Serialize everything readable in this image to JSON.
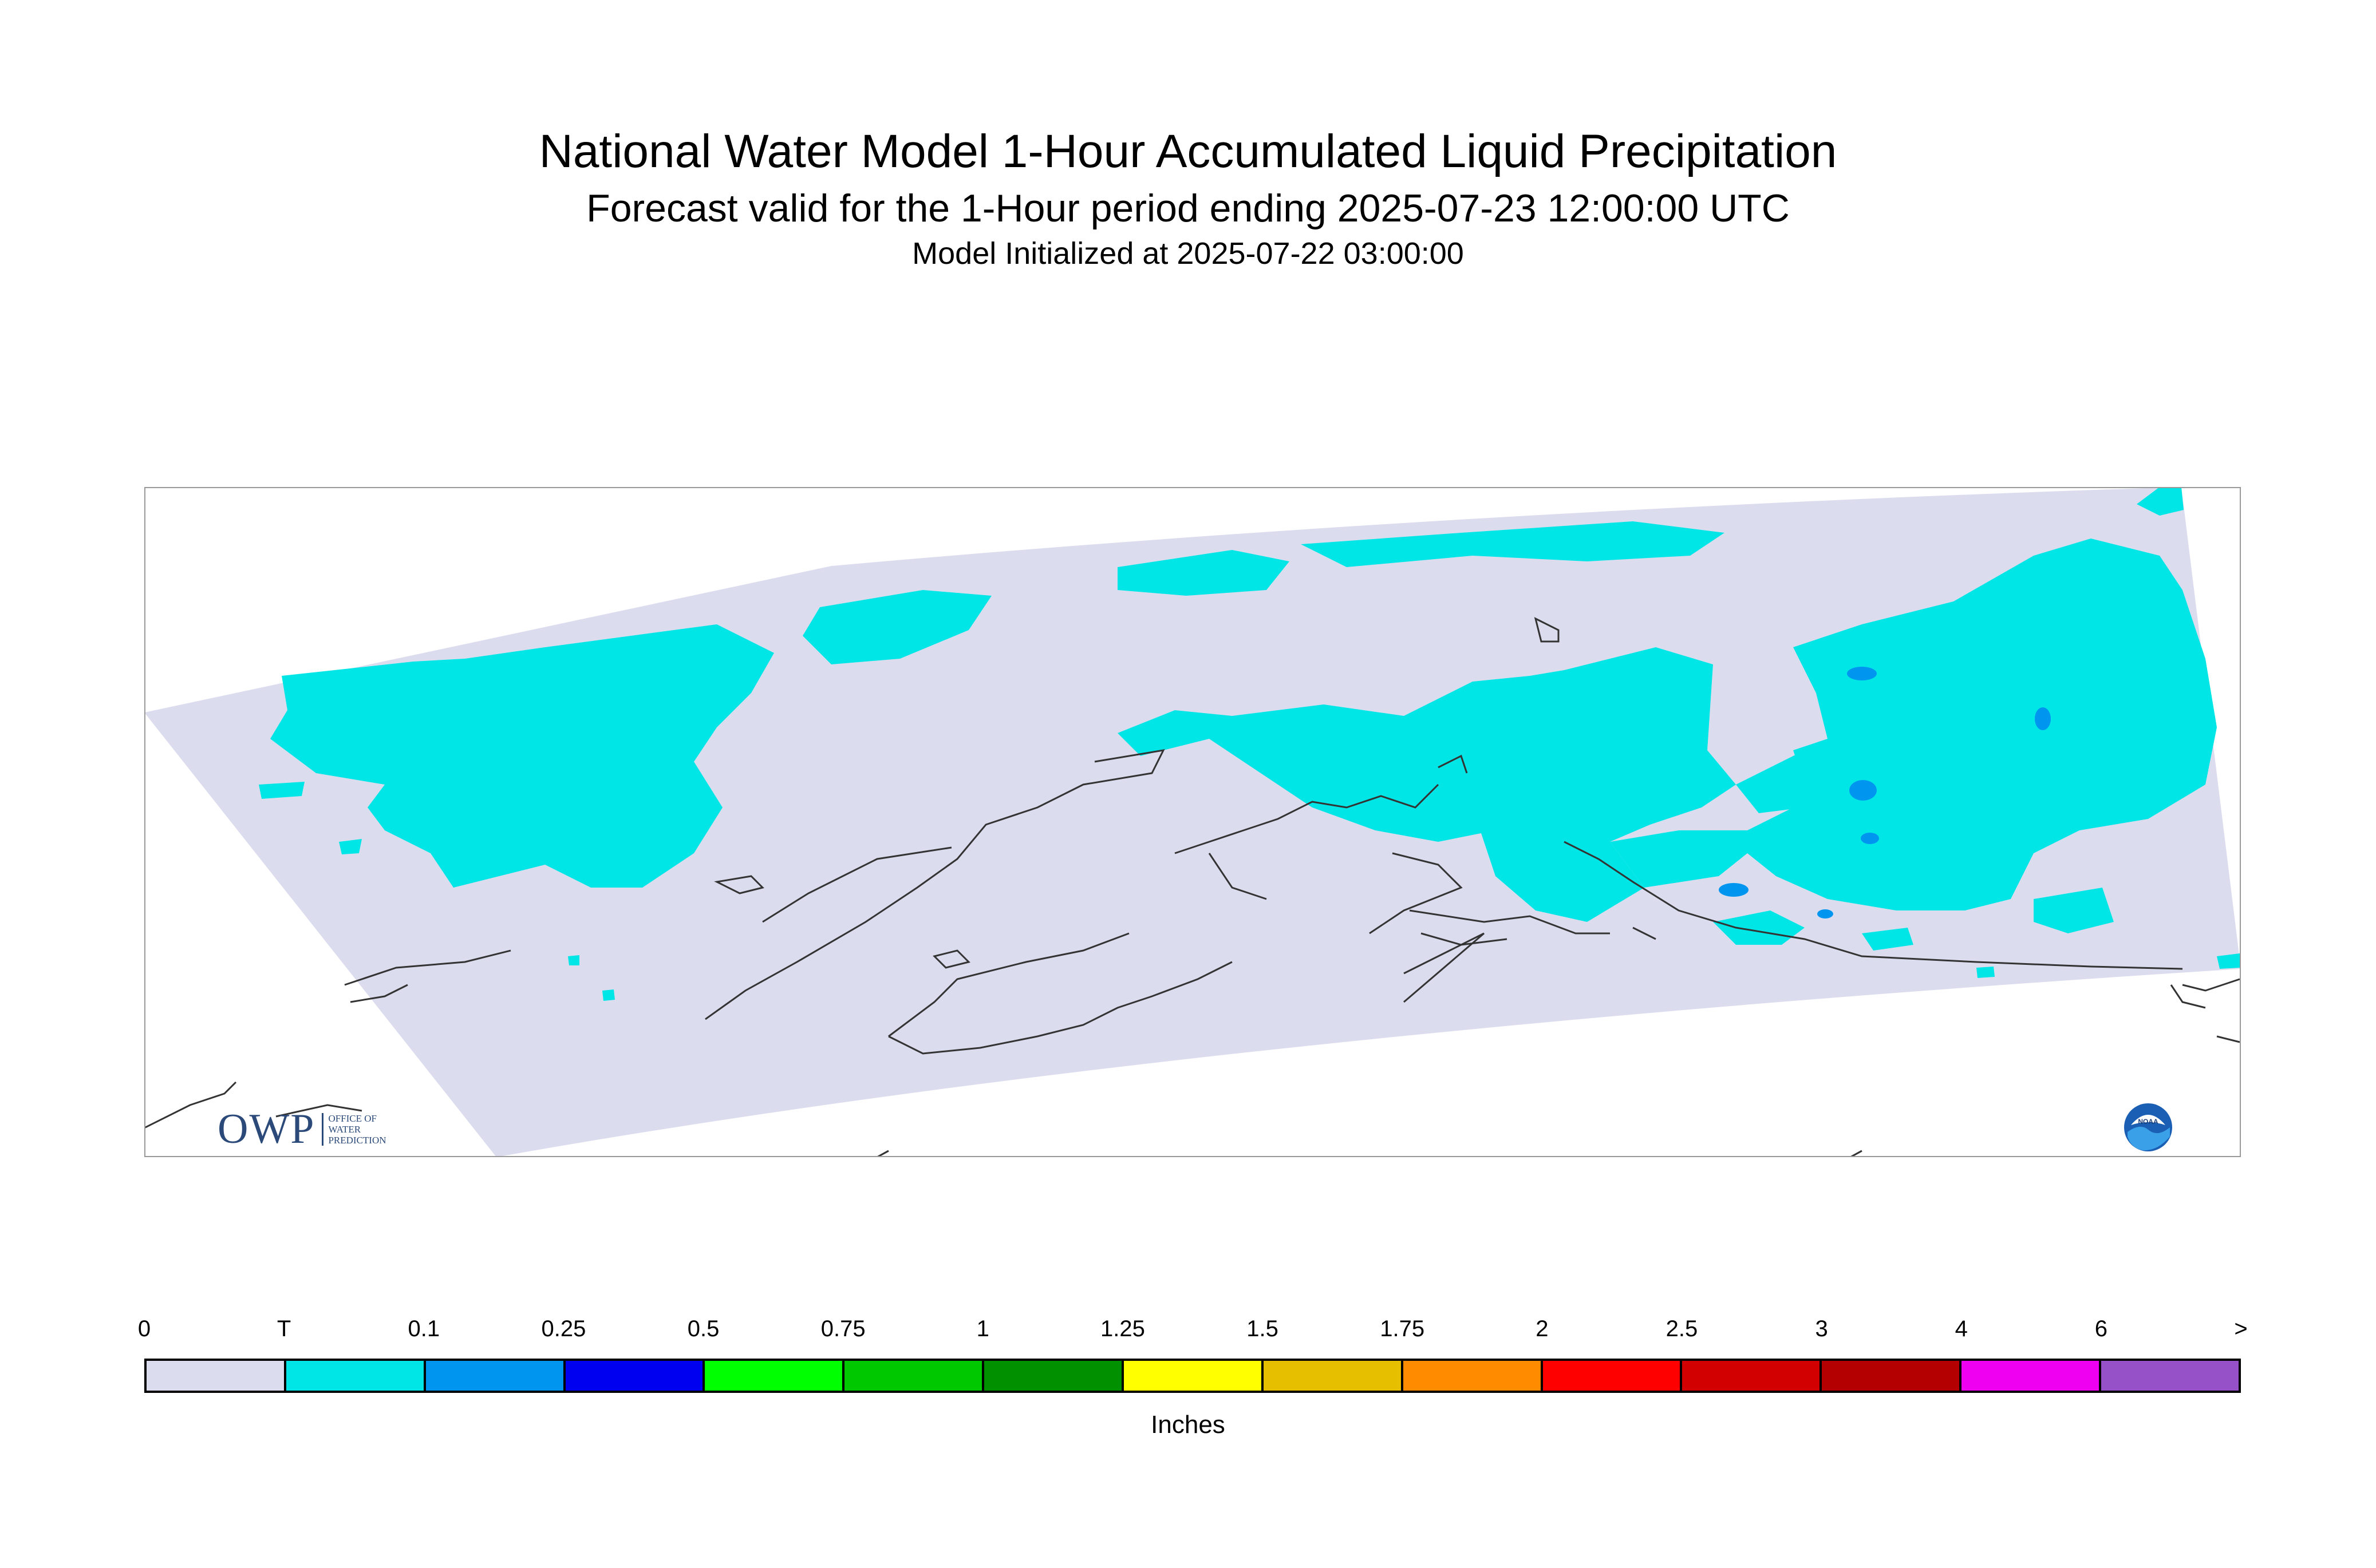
{
  "header": {
    "title": "National Water Model 1-Hour Accumulated Liquid Precipitation",
    "subtitle": "Forecast valid for the 1-Hour period ending 2025-07-23 12:00:00 UTC",
    "init": "Model Initialized at 2025-07-22 03:00:00"
  },
  "map": {
    "colors": {
      "no_precip": "#dcdcef",
      "trace": "#00e6e6",
      "light": "#0096f0",
      "coast": "#333333",
      "border": "#999999"
    },
    "icons": [
      "owp-logo",
      "noaa-logo"
    ]
  },
  "logos": {
    "owp_letters": "OWP",
    "owp_sub": [
      "OFFICE OF",
      "WATER",
      "PREDICTION"
    ],
    "noaa": "NOAA"
  },
  "legend": {
    "unit": "Inches",
    "ticks": [
      "0",
      "T",
      "0.1",
      "0.25",
      "0.5",
      "0.75",
      "1",
      "1.25",
      "1.5",
      "1.75",
      "2",
      "2.5",
      "3",
      "4",
      "6",
      ">"
    ],
    "colors": [
      "#dcdcef",
      "#00e6e6",
      "#0096f0",
      "#0000f0",
      "#00ff00",
      "#00c800",
      "#009000",
      "#ffff00",
      "#e6c000",
      "#ff8c00",
      "#ff0000",
      "#d20000",
      "#b40000",
      "#f000f0",
      "#9650c8"
    ]
  }
}
